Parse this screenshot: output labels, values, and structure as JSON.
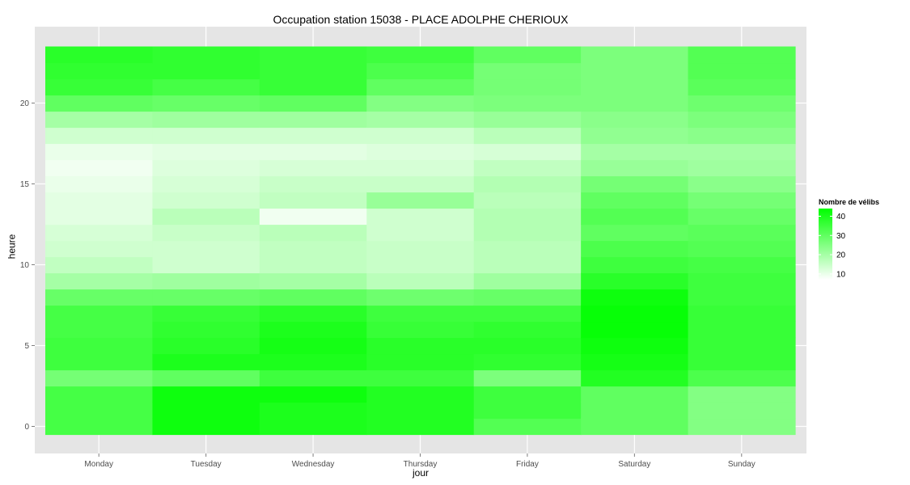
{
  "chart_data": {
    "type": "heatmap",
    "title": "Occupation station 15038 - PLACE ADOLPHE CHERIOUX",
    "xlabel": "jour",
    "ylabel": "heure",
    "x_categories": [
      "Monday",
      "Tuesday",
      "Wednesday",
      "Thursday",
      "Friday",
      "Saturday",
      "Sunday"
    ],
    "y_hours": [
      0,
      1,
      2,
      3,
      4,
      5,
      6,
      7,
      8,
      9,
      10,
      11,
      12,
      13,
      14,
      15,
      16,
      17,
      18,
      19,
      20,
      21,
      22,
      23
    ],
    "y_ticks": [
      0,
      5,
      10,
      15,
      20
    ],
    "ylim": [
      -0.5,
      23.5
    ],
    "legend": {
      "title": "Nombre de vélibs",
      "ticks": [
        10,
        20,
        30,
        40
      ],
      "range": [
        7,
        44
      ],
      "low_color": "#ffffff",
      "high_color": "#00ff00",
      "placement": "right"
    },
    "values": [
      [
        34,
        34,
        34,
        27,
        35,
        35,
        34,
        34,
        29,
        20,
        16,
        14,
        13,
        11,
        11,
        10,
        9,
        10,
        14,
        20,
        30,
        36,
        37,
        38
      ],
      [
        42,
        42,
        42,
        30,
        40,
        38,
        37,
        36,
        29,
        21,
        14,
        14,
        15,
        17,
        14,
        13,
        12,
        11,
        14,
        21,
        29,
        34,
        37,
        37
      ],
      [
        40,
        40,
        42,
        35,
        40,
        41,
        40,
        38,
        30,
        20,
        16,
        16,
        17,
        9,
        16,
        15,
        13,
        11,
        14,
        21,
        30,
        36,
        36,
        36
      ],
      [
        39,
        39,
        39,
        35,
        38,
        38,
        36,
        35,
        28,
        17,
        15,
        15,
        14,
        14,
        22,
        15,
        13,
        12,
        14,
        20,
        25,
        30,
        33,
        35
      ],
      [
        32,
        35,
        35,
        26,
        37,
        38,
        37,
        35,
        29,
        21,
        17,
        17,
        18,
        18,
        17,
        18,
        16,
        13,
        17,
        22,
        26,
        27,
        27,
        30
      ],
      [
        30,
        30,
        30,
        39,
        41,
        42,
        43,
        43,
        42,
        38,
        35,
        33,
        30,
        32,
        30,
        27,
        22,
        20,
        23,
        24,
        26,
        26,
        26,
        26
      ],
      [
        25,
        25,
        25,
        33,
        36,
        36,
        36,
        36,
        35,
        35,
        34,
        32,
        31,
        29,
        27,
        24,
        21,
        20,
        24,
        26,
        28,
        31,
        32,
        32
      ]
    ]
  }
}
